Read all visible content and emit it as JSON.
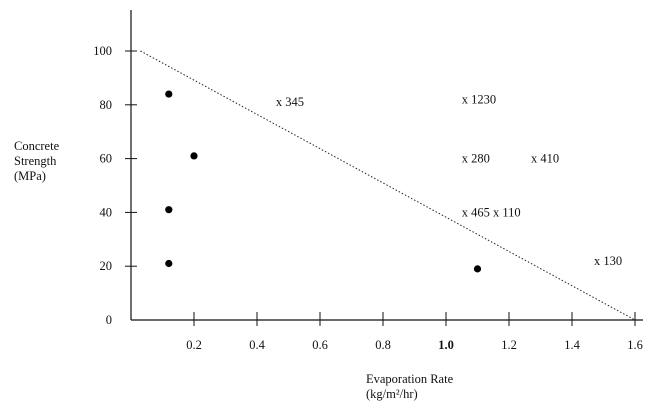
{
  "chart_data": {
    "type": "scatter",
    "title": "",
    "ylabel": [
      "Concrete",
      "Strength",
      "(MPa)"
    ],
    "xlabel": [
      "Evaporation Rate",
      "(kg/m²/hr)"
    ],
    "xlim": [
      0,
      1.6
    ],
    "ylim": [
      0,
      110
    ],
    "x_ticks": [
      {
        "value": 0.2,
        "label": "0.2"
      },
      {
        "value": 0.4,
        "label": "0.4"
      },
      {
        "value": 0.6,
        "label": "0.6"
      },
      {
        "value": 0.8,
        "label": "0.8"
      },
      {
        "value": 1.0,
        "label": "1.0"
      },
      {
        "value": 1.2,
        "label": "1.2"
      },
      {
        "value": 1.4,
        "label": "1.4"
      },
      {
        "value": 1.6,
        "label": "1.6"
      }
    ],
    "y_ticks": [
      {
        "value": 0,
        "label": "0"
      },
      {
        "value": 20,
        "label": "20"
      },
      {
        "value": 40,
        "label": "40"
      },
      {
        "value": 60,
        "label": "60"
      },
      {
        "value": 80,
        "label": "80"
      },
      {
        "value": 100,
        "label": "100"
      }
    ],
    "grid": false,
    "dividing_line": {
      "style": "dotted",
      "from": [
        0.03,
        100
      ],
      "to": [
        1.6,
        0
      ]
    },
    "dot_points": [
      {
        "x": 0.12,
        "y": 84
      },
      {
        "x": 0.2,
        "y": 61
      },
      {
        "x": 0.12,
        "y": 41
      },
      {
        "x": 0.12,
        "y": 21
      },
      {
        "x": 1.1,
        "y": 19
      }
    ],
    "x_points": [
      {
        "label": "x 345",
        "x": 0.46,
        "y": 81
      },
      {
        "label": "x 1230",
        "x": 1.05,
        "y": 82
      },
      {
        "label": "x 280",
        "x": 1.05,
        "y": 60
      },
      {
        "label": "x 410",
        "x": 1.27,
        "y": 60
      },
      {
        "label": "x 465 x 110",
        "x": 1.05,
        "y": 40
      },
      {
        "label": "x 130",
        "x": 1.47,
        "y": 22
      }
    ]
  }
}
